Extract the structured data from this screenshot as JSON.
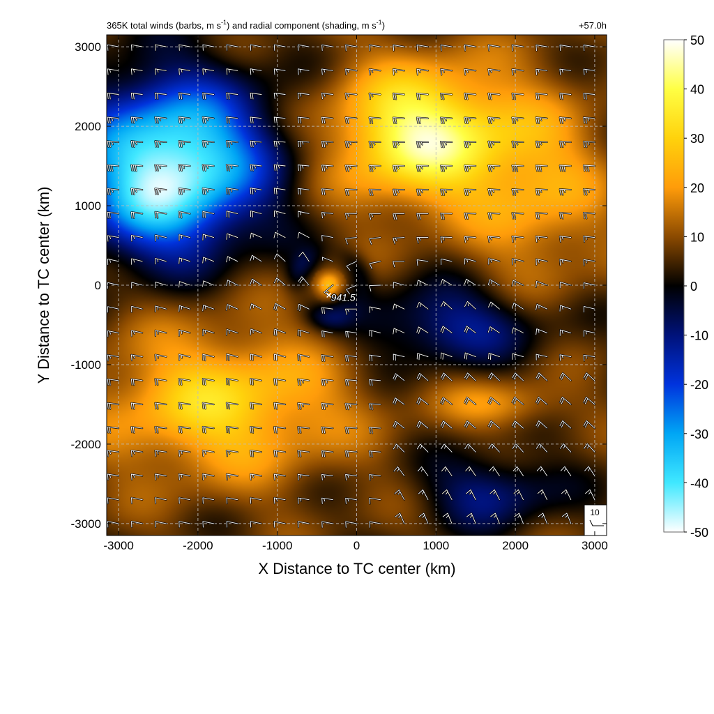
{
  "chart_data": {
    "type": "heatmap",
    "title": "365K total winds (barbs, m s",
    "title_sup1": "-1",
    "title_mid": ") and radial component (shading, m s",
    "title_sup2": "-1",
    "title_end": ")",
    "time_label": "+57.0h",
    "xlabel": "X Distance to TC center (km)",
    "ylabel": "Y Distance to TC center (km)",
    "xlim": [
      -3150,
      3150
    ],
    "ylim": [
      -3150,
      3150
    ],
    "x_ticks": [
      -3000,
      -2000,
      -1000,
      0,
      1000,
      2000,
      3000
    ],
    "y_ticks": [
      -3000,
      -2000,
      -1000,
      0,
      1000,
      2000,
      3000
    ],
    "x_tick_labels": [
      "-3000",
      "-2000",
      "-1000",
      "0",
      "1000",
      "2000",
      "3000"
    ],
    "y_tick_labels": [
      "-3000",
      "-2000",
      "-1000",
      "0",
      "1000",
      "2000",
      "3000"
    ],
    "grid": true,
    "colorbar": {
      "range": [
        -50,
        50
      ],
      "ticks": [
        50,
        40,
        30,
        20,
        10,
        0,
        -10,
        -20,
        -30,
        -40,
        -50
      ],
      "tick_labels": [
        "50",
        "40",
        "30",
        "20",
        "10",
        "0",
        "-10",
        "-20",
        "-30",
        "-40",
        "-50"
      ],
      "stops": [
        {
          "v": -50,
          "color": "#ffffff"
        },
        {
          "v": -40,
          "color": "#40e8ff"
        },
        {
          "v": -30,
          "color": "#00a6f5"
        },
        {
          "v": -20,
          "color": "#0033dd"
        },
        {
          "v": -10,
          "color": "#00127a"
        },
        {
          "v": 0,
          "color": "#000000"
        },
        {
          "v": 10,
          "color": "#8b4a00"
        },
        {
          "v": 20,
          "color": "#ff9c0a"
        },
        {
          "v": 30,
          "color": "#ffd20c"
        },
        {
          "v": 40,
          "color": "#ffff44"
        },
        {
          "v": 50,
          "color": "#ffffff"
        }
      ]
    },
    "center_marker": {
      "label": "941.5",
      "x": -350,
      "y": -180
    },
    "reference_barb": {
      "label": "10",
      "placement": "bottom-right"
    },
    "radial_wind_features": [
      {
        "name": "inflow_northwest",
        "cx": -2300,
        "cy": 1650,
        "sx": 1200,
        "sy": 950,
        "amp": -48
      },
      {
        "name": "inflow_west_edge",
        "cx": -2500,
        "cy": 900,
        "sx": 900,
        "sy": 700,
        "amp": -18
      },
      {
        "name": "outflow_north",
        "cx": 800,
        "cy": 1900,
        "sx": 1100,
        "sy": 850,
        "amp": 38
      },
      {
        "name": "outflow_northeast",
        "cx": 2300,
        "cy": 1200,
        "sx": 900,
        "sy": 1200,
        "amp": 16
      },
      {
        "name": "outflow_southwest",
        "cx": -1700,
        "cy": -1500,
        "sx": 1500,
        "sy": 900,
        "amp": 25
      },
      {
        "name": "inflow_east",
        "cx": 1200,
        "cy": -500,
        "sx": 1100,
        "sy": 500,
        "amp": -18
      },
      {
        "name": "inflow_southeast",
        "cx": 1700,
        "cy": -2600,
        "sx": 800,
        "sy": 450,
        "amp": -16
      },
      {
        "name": "core_outflow",
        "cx": -350,
        "cy": 0,
        "sx": 160,
        "sy": 160,
        "amp": 22
      },
      {
        "name": "band_between_inflows",
        "cx": 1800,
        "cy": -1500,
        "sx": 800,
        "sy": 300,
        "amp": 12
      }
    ],
    "wind_barb_grid": {
      "spacing_km": 300,
      "range": [
        -3000,
        3000
      ],
      "units": "m s-1"
    }
  }
}
